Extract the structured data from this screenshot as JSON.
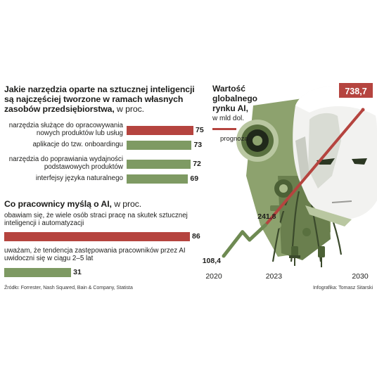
{
  "chart_data": [
    {
      "type": "bar",
      "orientation": "horizontal",
      "title": "Jakie narzędzia oparte na sztucznej inteligencji są najczęściej tworzone w ramach własnych zasobów przedsiębiorstwa,",
      "title_unit": "w proc.",
      "categories": [
        "narzędzia służące do opracowywania nowych produktów lub usług",
        "aplikacje do tzw. onboardingu",
        "narzędzia do poprawiania wydajności podstawowych produktów",
        "interfejsy języka naturalnego"
      ],
      "values": [
        75,
        73,
        72,
        69
      ],
      "value_labels": [
        "75",
        "73",
        "72",
        "69"
      ],
      "bar_colors": [
        "#b5443f",
        "#7e9a63",
        "#7e9a63",
        "#7e9a63"
      ]
    },
    {
      "type": "bar",
      "orientation": "horizontal",
      "title": "Co pracownicy myślą o AI,",
      "title_unit": "w proc.",
      "categories": [
        "obawiam się, że wiele osób straci pracę na skutek sztucznej inteligencji i automatyzacji",
        "uważam, że tendencja zastępowania pracowników przez AI uwidoczni się w ciągu 2–5 lat"
      ],
      "values": [
        86,
        31
      ],
      "value_labels": [
        "86",
        "31"
      ],
      "bar_colors": [
        "#b5443f",
        "#7e9a63"
      ]
    },
    {
      "type": "line",
      "title_lines": [
        "Wartość",
        "globalnego",
        "rynku AI,"
      ],
      "title_unit": "w mld dol.",
      "x": [
        2020,
        2023,
        2030
      ],
      "x_labels": [
        "2020",
        "2023",
        "2030"
      ],
      "values": [
        108.4,
        241.8,
        738.7
      ],
      "value_labels": [
        "108,4",
        "241,8",
        "738,7"
      ],
      "legend": "prognoza",
      "color_actual": "#6e8a52",
      "color_forecast": "#b5443f"
    }
  ],
  "footer": {
    "source": "Źródło: Forrester, Nash Squared, Bain & Company, Statista",
    "credit": "Infografika: Tomasz Sitarski"
  },
  "colors": {
    "red": "#b5443f",
    "green": "#7e9a63",
    "robot_green": "#6a7f4e",
    "robot_dark": "#3b4a2c"
  }
}
